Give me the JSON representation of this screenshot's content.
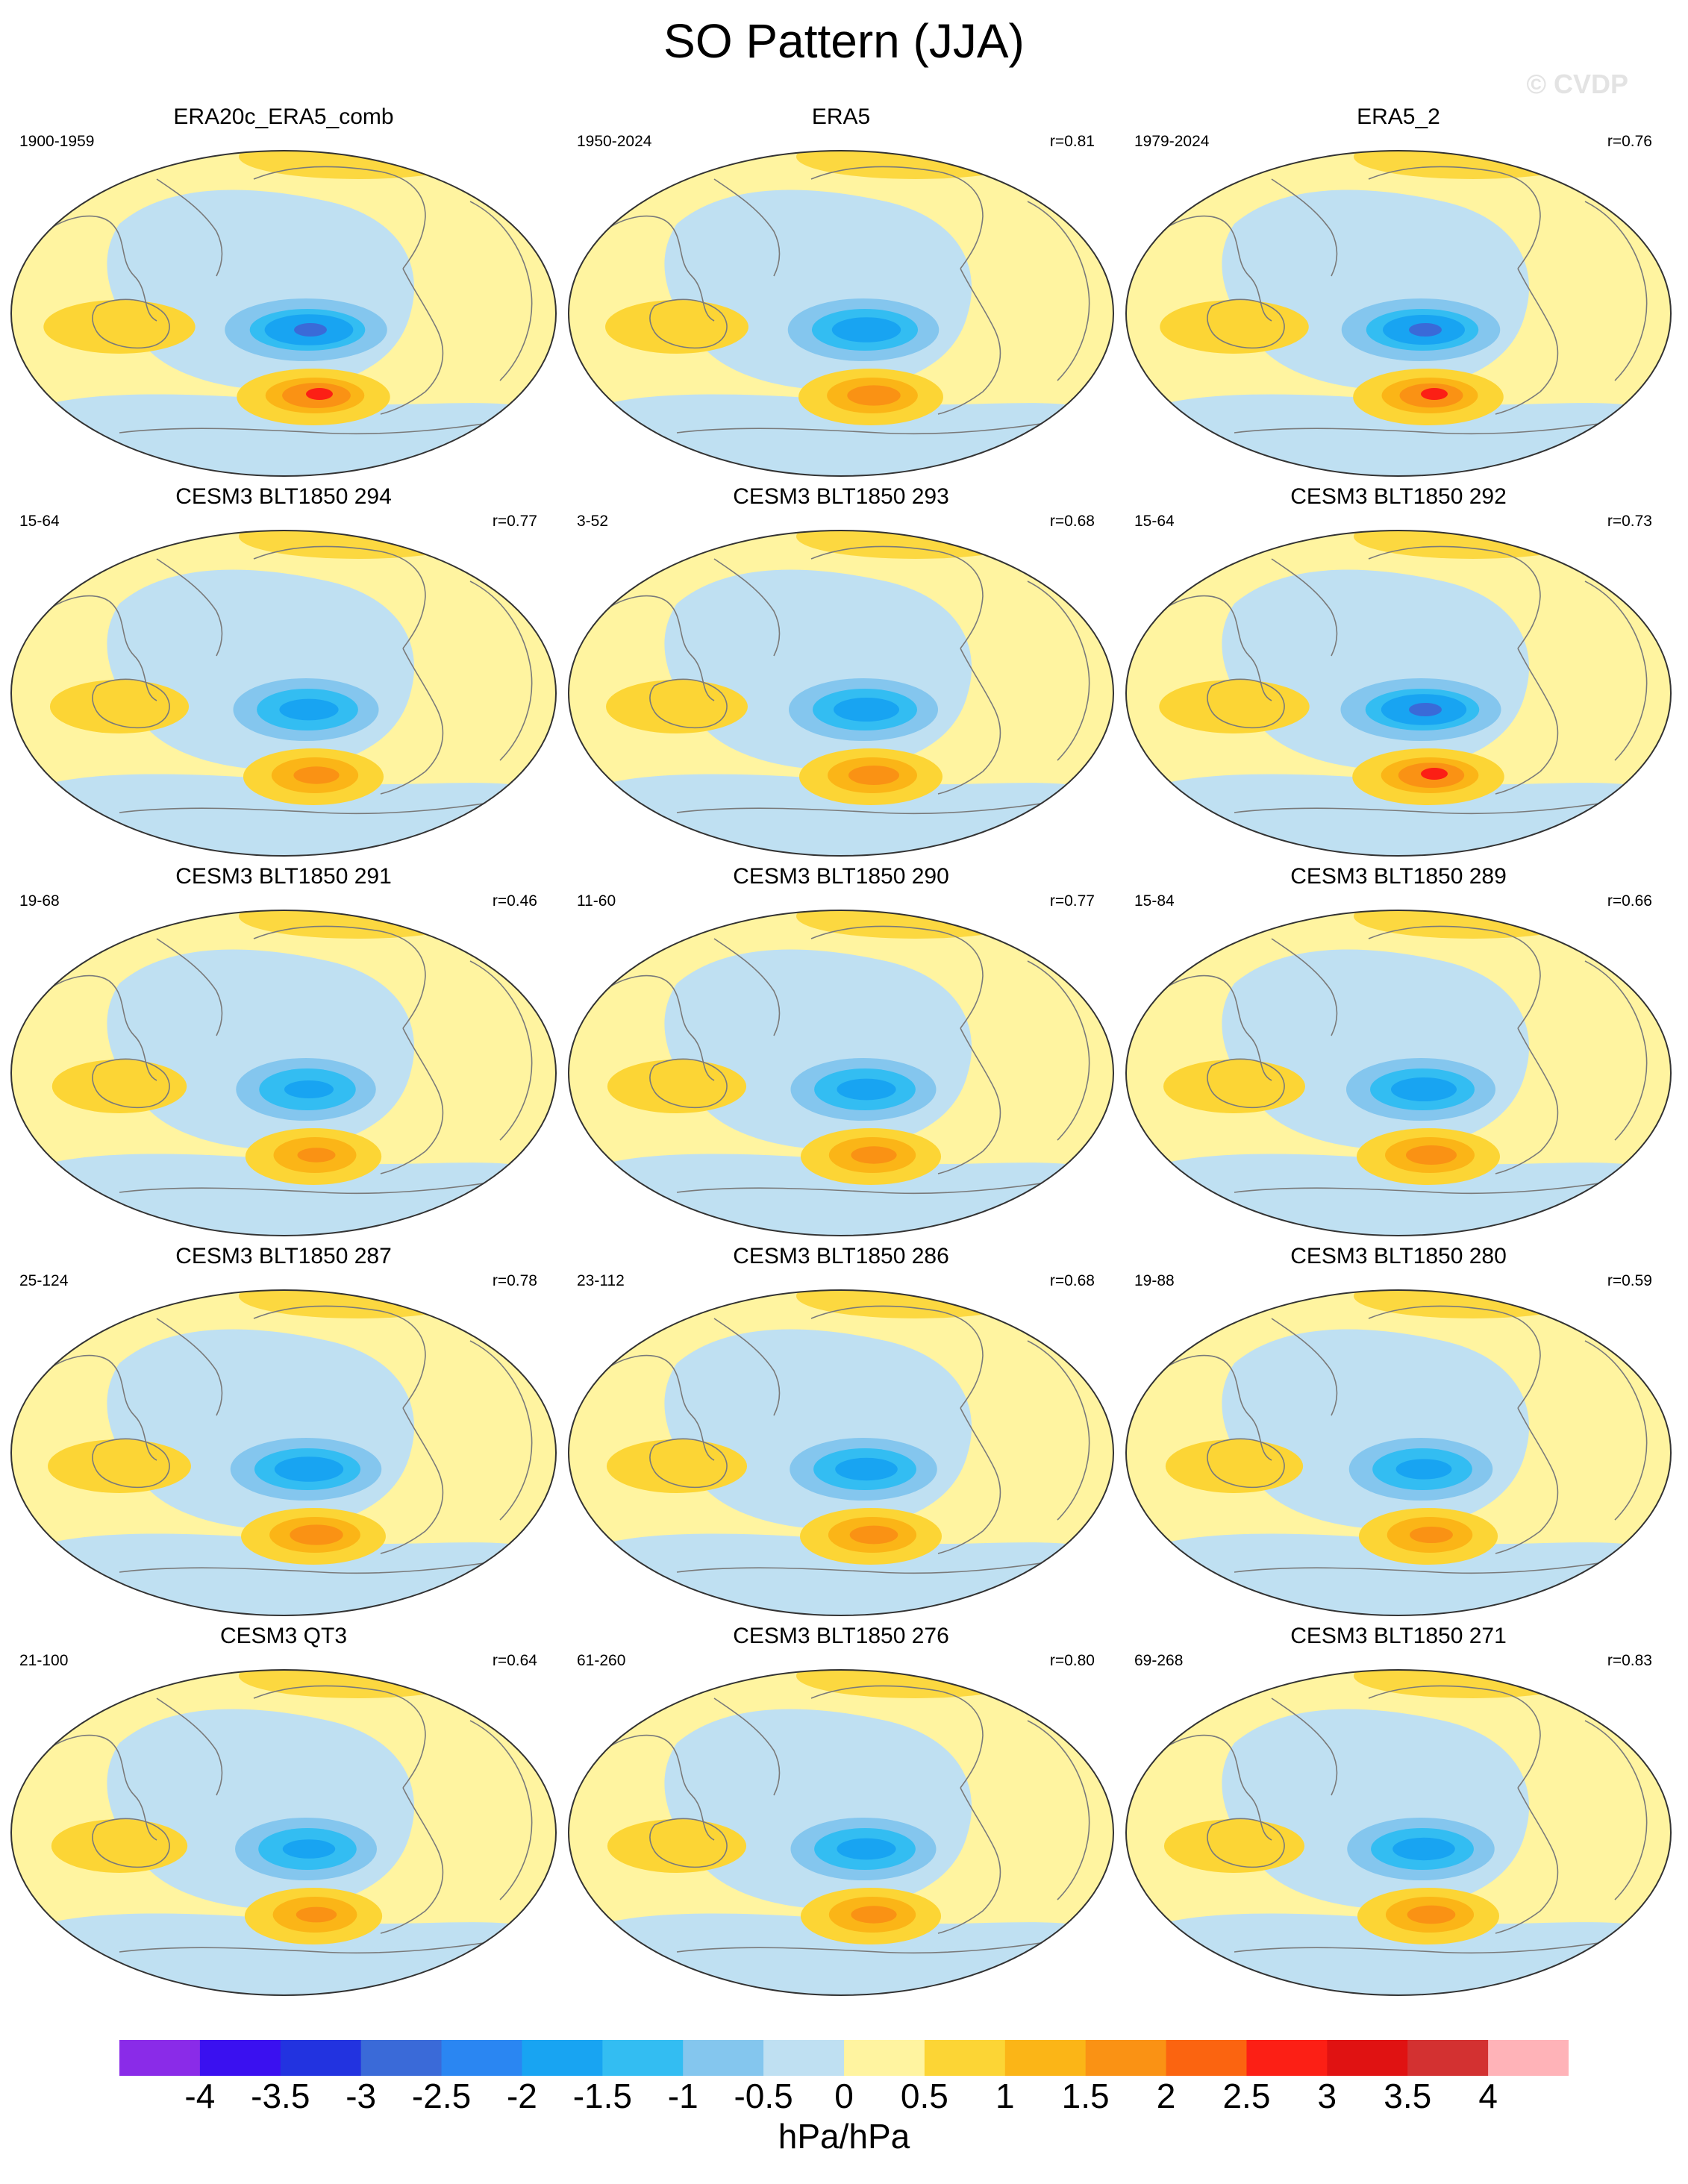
{
  "title": "SO Pattern (JJA)",
  "watermark": "© CVDP",
  "palette": {
    "land_outline": "#7a7a7a",
    "map_border": "#333333",
    "pos_light": "#fff4a0",
    "neg_light": "#bfe0f2"
  },
  "panels": [
    {
      "name": "ERA20c_ERA5_comb",
      "years": "1900-1959",
      "corr": "",
      "intensity": 1.35
    },
    {
      "name": "ERA5",
      "years": "1950-2024",
      "corr": "r=0.81",
      "intensity": 1.05
    },
    {
      "name": "ERA5_2",
      "years": "1979-2024",
      "corr": "r=0.76",
      "intensity": 1.25
    },
    {
      "name": "CESM3 BLT1850 294",
      "years": "15-64",
      "corr": "r=0.77",
      "intensity": 0.9
    },
    {
      "name": "CESM3 BLT1850 293",
      "years": "3-52",
      "corr": "r=0.68",
      "intensity": 1.0
    },
    {
      "name": "CESM3 BLT1850 292",
      "years": "15-64",
      "corr": "r=0.73",
      "intensity": 1.3
    },
    {
      "name": "CESM3 BLT1850 291",
      "years": "19-68",
      "corr": "r=0.46",
      "intensity": 0.75
    },
    {
      "name": "CESM3 BLT1850 290",
      "years": "11-60",
      "corr": "r=0.77",
      "intensity": 0.9
    },
    {
      "name": "CESM3 BLT1850 289",
      "years": "15-84",
      "corr": "r=0.66",
      "intensity": 1.0
    },
    {
      "name": "CESM3 BLT1850 287",
      "years": "25-124",
      "corr": "r=0.78",
      "intensity": 1.05
    },
    {
      "name": "CESM3 BLT1850 286",
      "years": "23-112",
      "corr": "r=0.68",
      "intensity": 0.95
    },
    {
      "name": "CESM3 BLT1850 280",
      "years": "19-88",
      "corr": "r=0.59",
      "intensity": 0.85
    },
    {
      "name": "CESM3 QT3",
      "years": "21-100",
      "corr": "r=0.64",
      "intensity": 0.8
    },
    {
      "name": "CESM3 BLT1850 276",
      "years": "61-260",
      "corr": "r=0.80",
      "intensity": 0.9
    },
    {
      "name": "CESM3 BLT1850 271",
      "years": "69-268",
      "corr": "r=0.83",
      "intensity": 0.95
    }
  ],
  "colorbar": {
    "units": "hPa/hPa",
    "ticks": [
      "-4",
      "-3.5",
      "-3",
      "-2.5",
      "-2",
      "-1.5",
      "-1",
      "-0.5",
      "0",
      "0.5",
      "1",
      "1.5",
      "2",
      "2.5",
      "3",
      "3.5",
      "4"
    ],
    "colors": [
      "#8a2be8",
      "#3a10f0",
      "#2233e0",
      "#3a6ad8",
      "#2a86f2",
      "#18a4f2",
      "#33bdf2",
      "#84c6ee",
      "#bfe0f2",
      "#fff4a0",
      "#fcd535",
      "#fbb517",
      "#fa9214",
      "#fb6410",
      "#fc1f15",
      "#e01212",
      "#d33131",
      "#ffb3b8"
    ]
  }
}
